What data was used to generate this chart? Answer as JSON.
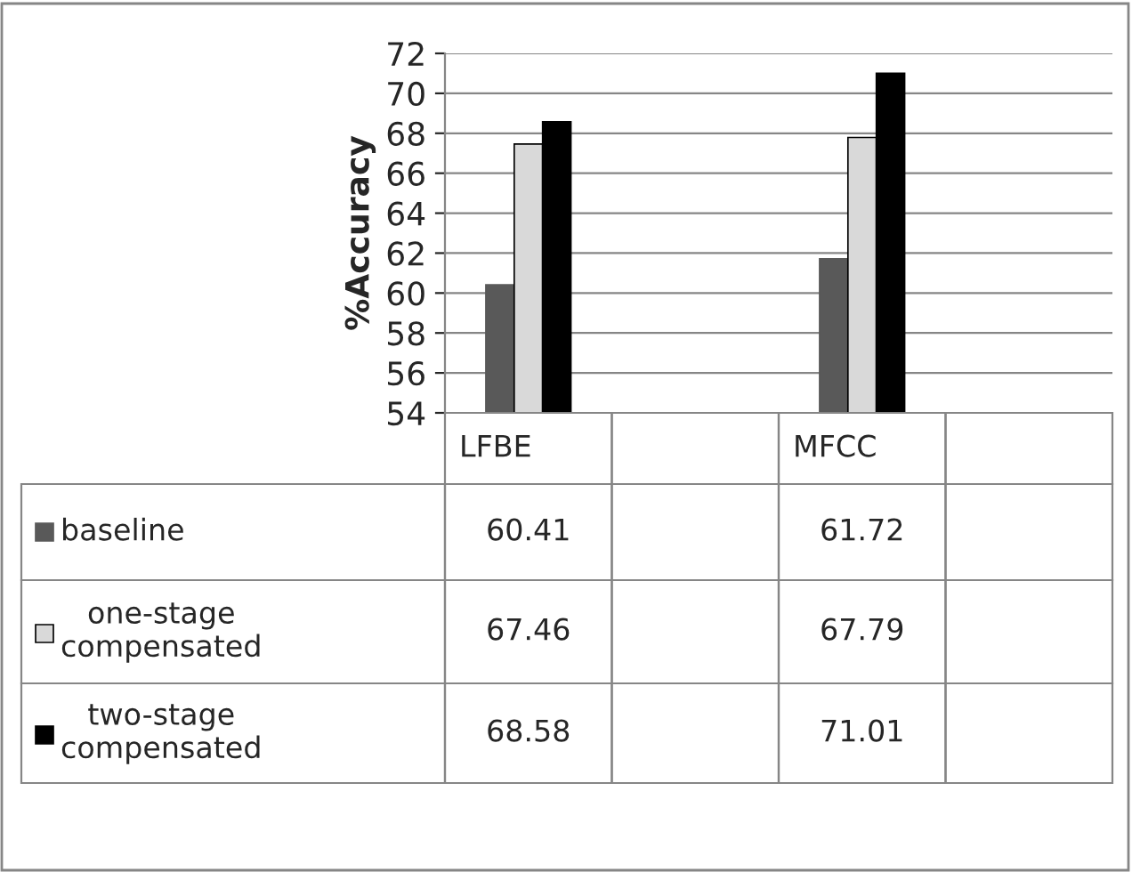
{
  "chart_data": {
    "type": "bar",
    "ylabel": "%Accuracy",
    "categories": [
      "LFBE",
      null,
      "MFCC",
      null
    ],
    "series": [
      {
        "name": "baseline",
        "color": "#595959",
        "values": [
          60.41,
          null,
          61.72,
          null
        ]
      },
      {
        "name": "one-stage compensated",
        "color": "#d9d9d9",
        "values": [
          67.46,
          null,
          67.79,
          null
        ]
      },
      {
        "name": "two-stage compensated",
        "color": "#000000",
        "values": [
          68.58,
          null,
          71.01,
          null
        ]
      }
    ],
    "ylim": [
      54,
      72
    ],
    "yticks": [
      54,
      56,
      58,
      60,
      62,
      64,
      66,
      68,
      70,
      72
    ],
    "grid": "y",
    "legend": "bottom left",
    "data_labels": true
  }
}
